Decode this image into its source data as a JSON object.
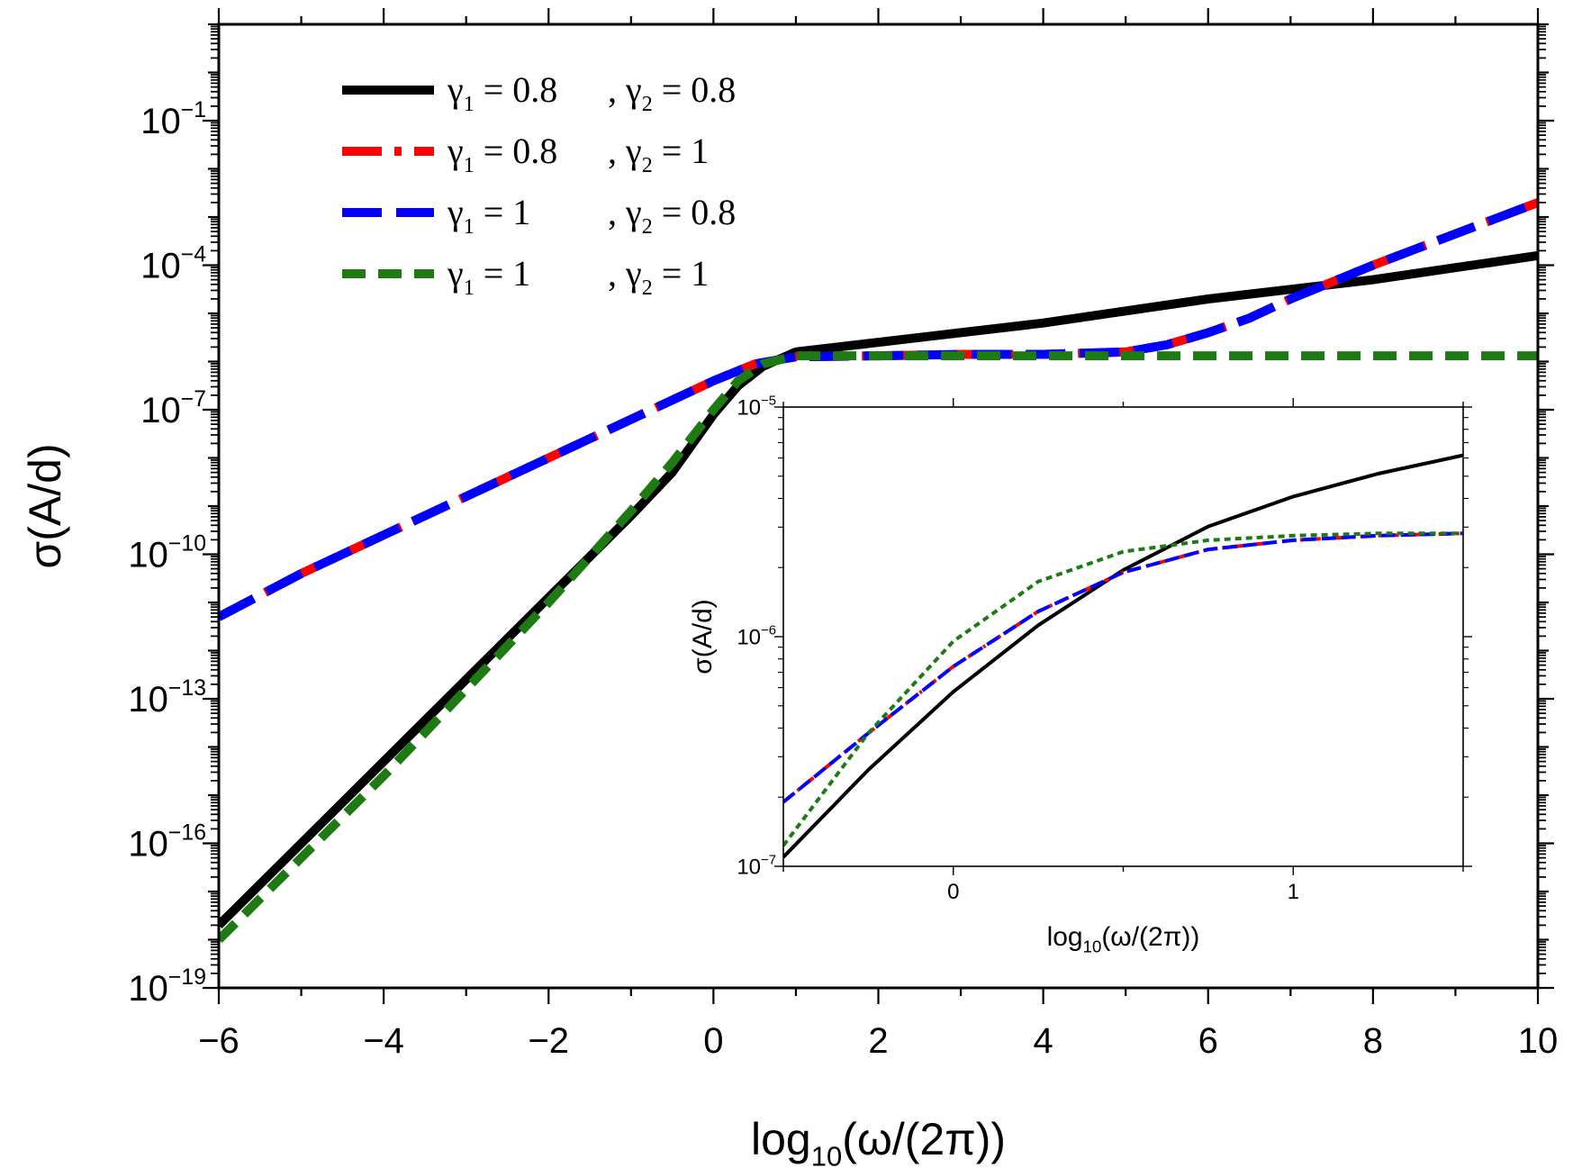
{
  "chart_data": [
    {
      "type": "line",
      "role": "main",
      "xlabel": "log10(ω/(2π))",
      "xlabel_parts": {
        "prefix": "log",
        "sub": "10",
        "suffix": "(ω/(2π))"
      },
      "ylabel": "σ(A/d)",
      "xlim": [
        -6,
        10
      ],
      "ylim_log10": [
        -19,
        1
      ],
      "y_scale": "log",
      "x_ticks": [
        "−6",
        "−4",
        "−2",
        "0",
        "2",
        "4",
        "6",
        "8",
        "10"
      ],
      "x_tick_values": [
        -6,
        -4,
        -2,
        0,
        2,
        4,
        6,
        8,
        10
      ],
      "y_tick_exponents": [
        "−1",
        "−4",
        "−7",
        "−10",
        "−13",
        "−16",
        "−19"
      ],
      "y_tick_values": [
        -1,
        -4,
        -7,
        -10,
        -13,
        -16,
        -19
      ],
      "y_tick_base": "10",
      "legend_position": "top-left",
      "series": [
        {
          "name": "γ1 = 0.8 , γ2 = 0.8",
          "label_left": {
            "sym": "γ",
            "sub": "1",
            "val": " = 0.8"
          },
          "label_right": {
            "sym": ", γ",
            "sub": "2",
            "val": " = 0.8"
          },
          "color": "#000000",
          "style": "solid",
          "x": [
            -6,
            -5,
            -4,
            -3,
            -2,
            -1,
            -0.5,
            0,
            0.3,
            0.6,
            1,
            2,
            3,
            4,
            5,
            6,
            7,
            8,
            9,
            10
          ],
          "log10_y": [
            -17.7,
            -16.0,
            -14.3,
            -12.6,
            -10.9,
            -9.2,
            -8.3,
            -7.1,
            -6.5,
            -6.1,
            -5.8,
            -5.6,
            -5.4,
            -5.2,
            -4.95,
            -4.7,
            -4.5,
            -4.3,
            -4.05,
            -3.8
          ]
        },
        {
          "name": "γ1 = 0.8 , γ2 = 1",
          "label_left": {
            "sym": "γ",
            "sub": "1",
            "val": " = 0.8"
          },
          "label_right": {
            "sym": ", γ",
            "sub": "2",
            "val": " = 1"
          },
          "color": "#ff0000",
          "style": "dash-dot",
          "x": [
            -6,
            -5,
            -4,
            -3,
            -2,
            -1,
            -0.5,
            0,
            0.5,
            1,
            2,
            3,
            4,
            5,
            5.5,
            6,
            6.5,
            7,
            8,
            9,
            10
          ],
          "log10_y": [
            -11.3,
            -10.4,
            -9.6,
            -8.8,
            -8.0,
            -7.2,
            -6.8,
            -6.4,
            -6.05,
            -5.9,
            -5.88,
            -5.85,
            -5.85,
            -5.8,
            -5.65,
            -5.4,
            -5.1,
            -4.7,
            -4.0,
            -3.35,
            -2.7
          ]
        },
        {
          "name": "γ1 = 1 , γ2 = 0.8",
          "label_left": {
            "sym": "γ",
            "sub": "1",
            "val": " = 1"
          },
          "label_right": {
            "sym": ", γ",
            "sub": "2",
            "val": " = 0.8"
          },
          "color": "#0000ff",
          "style": "long-dash",
          "x": [
            -6,
            -5,
            -4,
            -3,
            -2,
            -1,
            -0.5,
            0,
            0.5,
            1,
            2,
            3,
            4,
            5,
            5.5,
            6,
            6.5,
            7,
            8,
            9,
            10
          ],
          "log10_y": [
            -11.3,
            -10.4,
            -9.6,
            -8.8,
            -8.0,
            -7.2,
            -6.8,
            -6.4,
            -6.05,
            -5.9,
            -5.88,
            -5.85,
            -5.85,
            -5.8,
            -5.65,
            -5.4,
            -5.1,
            -4.7,
            -4.0,
            -3.35,
            -2.7
          ]
        },
        {
          "name": "γ1 = 1 , γ2 = 1",
          "label_left": {
            "sym": "γ",
            "sub": "1",
            "val": " = 1"
          },
          "label_right": {
            "sym": ", γ",
            "sub": "2",
            "val": " = 1"
          },
          "color": "#1e7a12",
          "style": "dash",
          "x": [
            -6,
            -5,
            -4,
            -3,
            -2,
            -1,
            -0.5,
            0,
            0.3,
            0.6,
            1,
            2,
            4,
            6,
            8,
            10
          ],
          "log10_y": [
            -18.0,
            -16.3,
            -14.6,
            -12.8,
            -11.0,
            -9.1,
            -8.1,
            -7.0,
            -6.4,
            -6.05,
            -5.88,
            -5.88,
            -5.88,
            -5.88,
            -5.88,
            -5.88
          ]
        }
      ]
    },
    {
      "type": "line",
      "role": "inset",
      "xlabel": "log10(ω/(2π))",
      "xlabel_parts": {
        "prefix": "log",
        "sub": "10",
        "suffix": "(ω/(2π))"
      },
      "ylabel": "σ(A/d)",
      "xlim": [
        -0.5,
        1.5
      ],
      "ylim_log10": [
        -7,
        -5
      ],
      "y_scale": "log",
      "x_ticks": [
        "0",
        "1"
      ],
      "x_tick_values": [
        0,
        1
      ],
      "y_tick_exponents": [
        "−7",
        "−6",
        "−5"
      ],
      "y_tick_values": [
        -7,
        -6,
        -5
      ],
      "y_tick_base": "10",
      "series": [
        {
          "name": "γ1 = 0.8 , γ2 = 0.8",
          "color": "#000000",
          "style": "solid",
          "x": [
            -0.5,
            -0.25,
            0,
            0.25,
            0.5,
            0.75,
            1.0,
            1.25,
            1.5
          ],
          "log10_y": [
            -6.96,
            -6.58,
            -6.24,
            -5.95,
            -5.71,
            -5.52,
            -5.39,
            -5.29,
            -5.21
          ]
        },
        {
          "name": "γ1 = 0.8 , γ2 = 1",
          "color": "#ff0000",
          "style": "dash-dot",
          "x": [
            -0.5,
            -0.25,
            0,
            0.25,
            0.5,
            0.75,
            1.0,
            1.25,
            1.5
          ],
          "log10_y": [
            -6.72,
            -6.42,
            -6.13,
            -5.89,
            -5.72,
            -5.62,
            -5.58,
            -5.56,
            -5.55
          ]
        },
        {
          "name": "γ1 = 1 , γ2 = 0.8",
          "color": "#0000ff",
          "style": "long-dash",
          "x": [
            -0.5,
            -0.25,
            0,
            0.25,
            0.5,
            0.75,
            1.0,
            1.25,
            1.5
          ],
          "log10_y": [
            -6.72,
            -6.42,
            -6.13,
            -5.89,
            -5.72,
            -5.62,
            -5.58,
            -5.56,
            -5.55
          ]
        },
        {
          "name": "γ1 = 1 , γ2 = 1",
          "color": "#1e7a12",
          "style": "dash",
          "x": [
            -0.5,
            -0.25,
            0,
            0.25,
            0.5,
            0.75,
            1.0,
            1.25,
            1.5
          ],
          "log10_y": [
            -6.91,
            -6.42,
            -6.02,
            -5.76,
            -5.63,
            -5.58,
            -5.56,
            -5.55,
            -5.55
          ]
        }
      ]
    }
  ]
}
